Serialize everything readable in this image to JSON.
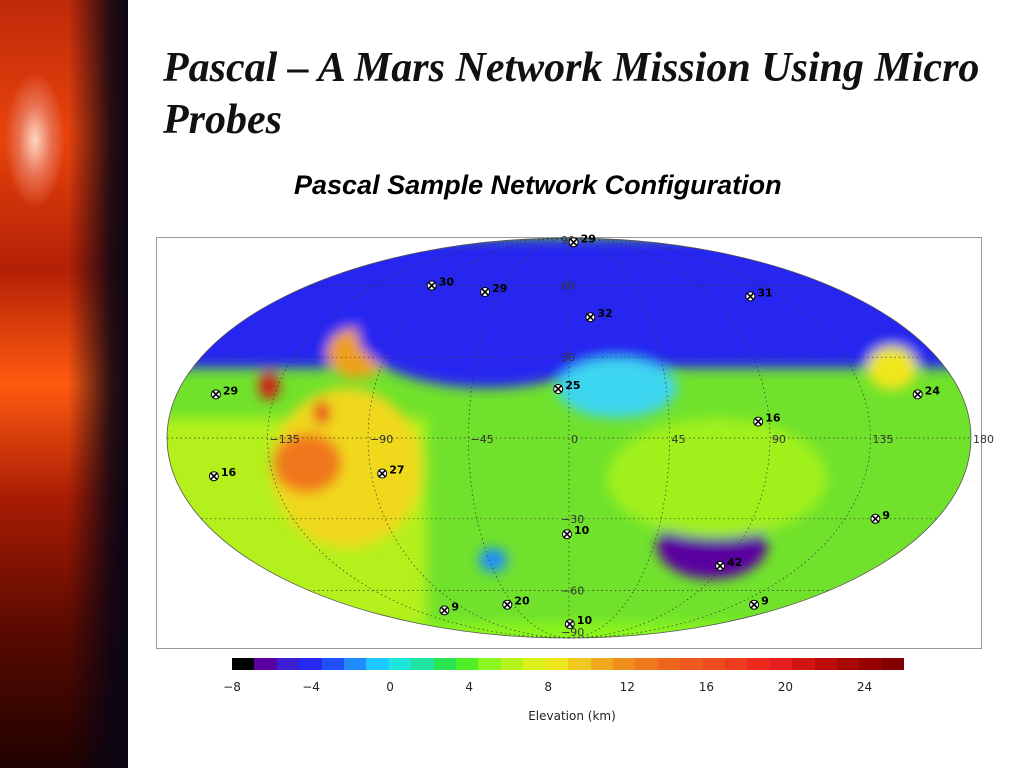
{
  "slide": {
    "title": "Pascal – A Mars Network Mission Using Micro Probes",
    "subtitle": "Pascal Sample Network Configuration"
  },
  "map": {
    "projection": "mollweide",
    "longitude_ticks": [
      "−135",
      "−90",
      "−45",
      "0",
      "45",
      "90",
      "135",
      "180"
    ],
    "latitude_ticks": [
      "90",
      "60",
      "30",
      "−30",
      "−60",
      "−90"
    ],
    "sites": [
      {
        "label": "29",
        "lon": 10,
        "lat": 85
      },
      {
        "label": "30",
        "lon": -95,
        "lat": 60
      },
      {
        "label": "29",
        "lon": -55,
        "lat": 57
      },
      {
        "label": "31",
        "lon": 115,
        "lat": 55
      },
      {
        "label": "32",
        "lon": 12,
        "lat": 46
      },
      {
        "label": "25",
        "lon": -5,
        "lat": 18
      },
      {
        "label": "29",
        "lon": -162,
        "lat": 16
      },
      {
        "label": "24",
        "lon": 160,
        "lat": 16
      },
      {
        "label": "16",
        "lon": 85,
        "lat": 6
      },
      {
        "label": "27",
        "lon": -85,
        "lat": -13
      },
      {
        "label": "16",
        "lon": -162,
        "lat": -14
      },
      {
        "label": "9",
        "lon": 150,
        "lat": -30
      },
      {
        "label": "10",
        "lon": -1,
        "lat": -36
      },
      {
        "label": "42",
        "lon": 88,
        "lat": -49
      },
      {
        "label": "9",
        "lon": -110,
        "lat": -70
      },
      {
        "label": "20",
        "lon": -50,
        "lat": -67
      },
      {
        "label": "9",
        "lon": 150,
        "lat": -67
      },
      {
        "label": "10",
        "lon": 1,
        "lat": -78
      }
    ]
  },
  "colorbar": {
    "label": "Elevation (km)",
    "ticks": [
      "−8",
      "−4",
      "0",
      "4",
      "8",
      "12",
      "16",
      "20",
      "24"
    ],
    "range": [
      -8,
      26
    ],
    "colors": [
      "#000000",
      "#5a00a0",
      "#3c1ed2",
      "#2828f0",
      "#1e50ff",
      "#1e8cff",
      "#1ec8ff",
      "#1ee6dc",
      "#1ee6a0",
      "#28e650",
      "#50f028",
      "#8cf51e",
      "#b4f51e",
      "#dcf01e",
      "#f0e61e",
      "#f0c81e",
      "#f0aa1e",
      "#f08c1e",
      "#f0781e",
      "#f0641e",
      "#f05a1e",
      "#f04b1e",
      "#f03c1e",
      "#f0281e",
      "#e61e1e",
      "#d21414",
      "#be0a0a",
      "#aa0505",
      "#960000",
      "#820000"
    ]
  }
}
